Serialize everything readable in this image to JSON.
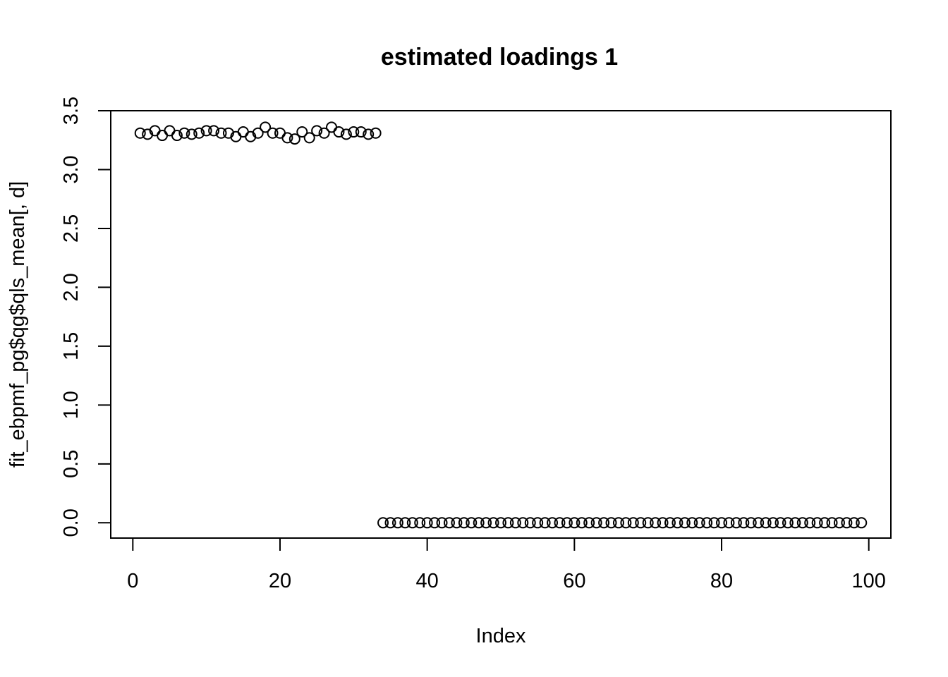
{
  "chart_data": {
    "type": "scatter",
    "title": "estimated loadings 1",
    "xlabel": "Index",
    "ylabel": "fit_ebpmf_pg$qg$qls_mean[, d]",
    "xlim": [
      -3,
      103
    ],
    "ylim": [
      -0.13,
      3.5
    ],
    "xticks": [
      0,
      20,
      40,
      60,
      80,
      100
    ],
    "xtick_labels": [
      "0",
      "20",
      "40",
      "60",
      "80",
      "100"
    ],
    "yticks": [
      0.0,
      0.5,
      1.0,
      1.5,
      2.0,
      2.5,
      3.0,
      3.5
    ],
    "ytick_labels": [
      "0.0",
      "0.5",
      "1.0",
      "1.5",
      "2.0",
      "2.5",
      "3.0",
      "3.5"
    ],
    "marker": "open-circle",
    "grid": false,
    "x": [
      1,
      2,
      3,
      4,
      5,
      6,
      7,
      8,
      9,
      10,
      11,
      12,
      13,
      14,
      15,
      16,
      17,
      18,
      19,
      20,
      21,
      22,
      23,
      24,
      25,
      26,
      27,
      28,
      29,
      30,
      31,
      32,
      33,
      34,
      35,
      36,
      37,
      38,
      39,
      40,
      41,
      42,
      43,
      44,
      45,
      46,
      47,
      48,
      49,
      50,
      51,
      52,
      53,
      54,
      55,
      56,
      57,
      58,
      59,
      60,
      61,
      62,
      63,
      64,
      65,
      66,
      67,
      68,
      69,
      70,
      71,
      72,
      73,
      74,
      75,
      76,
      77,
      78,
      79,
      80,
      81,
      82,
      83,
      84,
      85,
      86,
      87,
      88,
      89,
      90,
      91,
      92,
      93,
      94,
      95,
      96,
      97,
      98,
      99
    ],
    "y": [
      3.31,
      3.3,
      3.33,
      3.29,
      3.33,
      3.29,
      3.31,
      3.3,
      3.31,
      3.33,
      3.33,
      3.31,
      3.31,
      3.28,
      3.32,
      3.28,
      3.31,
      3.36,
      3.31,
      3.31,
      3.27,
      3.26,
      3.32,
      3.27,
      3.33,
      3.31,
      3.36,
      3.32,
      3.3,
      3.32,
      3.32,
      3.3,
      3.31,
      0.0,
      0.0,
      0.0,
      0.0,
      0.0,
      0.0,
      0.0,
      0.0,
      0.0,
      0.0,
      0.0,
      0.0,
      0.0,
      0.0,
      0.0,
      0.0,
      0.0,
      0.0,
      0.0,
      0.0,
      0.0,
      0.0,
      0.0,
      0.0,
      0.0,
      0.0,
      0.0,
      0.0,
      0.0,
      0.0,
      0.0,
      0.0,
      0.0,
      0.0,
      0.0,
      0.0,
      0.0,
      0.0,
      0.0,
      0.0,
      0.0,
      0.0,
      0.0,
      0.0,
      0.0,
      0.0,
      0.0,
      0.0,
      0.0,
      0.0,
      0.0,
      0.0,
      0.0,
      0.0,
      0.0,
      0.0,
      0.0,
      0.0,
      0.0,
      0.0,
      0.0,
      0.0,
      0.0,
      0.0,
      0.0,
      0.0
    ]
  }
}
